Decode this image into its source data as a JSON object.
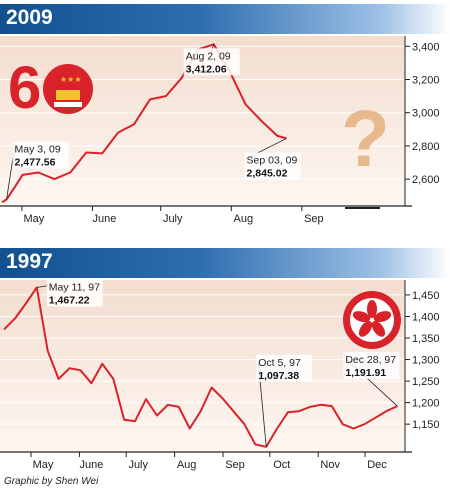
{
  "chart_data": [
    {
      "type": "line",
      "title": "2009",
      "x_tick_labels": [
        "May",
        "June",
        "July",
        "Aug",
        "Sep"
      ],
      "y_ticks": [
        2600,
        2800,
        3000,
        3200,
        3400
      ],
      "y_tick_labels": [
        "2,600",
        "2,800",
        "3,000",
        "3,200",
        "3,400"
      ],
      "ylim": [
        2450,
        3450
      ],
      "xlim": [
        "2009-05-01",
        "2009-09-30"
      ],
      "series": [
        {
          "color": "#d8232a",
          "points": [
            [
              "2009-05-01",
              2460
            ],
            [
              "2009-05-03",
              2477.56
            ],
            [
              "2009-05-07",
              2560
            ],
            [
              "2009-05-10",
              2625
            ],
            [
              "2009-05-17",
              2640
            ],
            [
              "2009-05-24",
              2600
            ],
            [
              "2009-05-31",
              2640
            ],
            [
              "2009-06-07",
              2760
            ],
            [
              "2009-06-14",
              2755
            ],
            [
              "2009-06-21",
              2880
            ],
            [
              "2009-06-28",
              2930
            ],
            [
              "2009-07-05",
              3080
            ],
            [
              "2009-07-12",
              3100
            ],
            [
              "2009-07-19",
              3210
            ],
            [
              "2009-07-26",
              3380
            ],
            [
              "2009-08-02",
              3412.06
            ],
            [
              "2009-08-09",
              3250
            ],
            [
              "2009-08-16",
              3050
            ],
            [
              "2009-08-23",
              2950
            ],
            [
              "2009-08-30",
              2860
            ],
            [
              "2009-09-03",
              2845.02
            ]
          ]
        }
      ],
      "annotations": [
        {
          "date_label": "May 3, 09",
          "value_label": "2,477.56",
          "x": "2009-05-03",
          "y": 2477.56
        },
        {
          "date_label": "Aug 2, 09",
          "value_label": "3,412.06",
          "x": "2009-08-02",
          "y": 3412.06
        },
        {
          "date_label": "Sep 03, 09",
          "value_label": "2,845.02",
          "x": "2009-09-03",
          "y": 2845.02
        }
      ],
      "decorations": {
        "logo": "60th-anniversary-logo",
        "glyph": "?"
      }
    },
    {
      "type": "line",
      "title": "1997",
      "x_tick_labels": [
        "May",
        "June",
        "July",
        "Aug",
        "Sep",
        "Oct",
        "Nov",
        "Dec"
      ],
      "y_ticks": [
        1150,
        1200,
        1250,
        1300,
        1350,
        1400,
        1450
      ],
      "y_tick_labels": [
        "1,150",
        "1,200",
        "1,250",
        "1,300",
        "1,350",
        "1,400",
        "1,450"
      ],
      "ylim": [
        1090,
        1480
      ],
      "xlim": [
        "1997-04-20",
        "1997-12-31"
      ],
      "series": [
        {
          "color": "#d8232a",
          "points": [
            [
              "1997-04-20",
              1370
            ],
            [
              "1997-04-27",
              1395
            ],
            [
              "1997-05-04",
              1430
            ],
            [
              "1997-05-11",
              1467.22
            ],
            [
              "1997-05-18",
              1320
            ],
            [
              "1997-05-25",
              1255
            ],
            [
              "1997-06-01",
              1280
            ],
            [
              "1997-06-08",
              1275
            ],
            [
              "1997-06-15",
              1245
            ],
            [
              "1997-06-22",
              1290
            ],
            [
              "1997-06-29",
              1255
            ],
            [
              "1997-07-06",
              1160
            ],
            [
              "1997-07-13",
              1157
            ],
            [
              "1997-07-20",
              1208
            ],
            [
              "1997-07-27",
              1170
            ],
            [
              "1997-08-03",
              1195
            ],
            [
              "1997-08-10",
              1190
            ],
            [
              "1997-08-17",
              1140
            ],
            [
              "1997-08-24",
              1180
            ],
            [
              "1997-08-31",
              1235
            ],
            [
              "1997-09-07",
              1210
            ],
            [
              "1997-09-14",
              1180
            ],
            [
              "1997-09-21",
              1150
            ],
            [
              "1997-09-28",
              1103
            ],
            [
              "1997-10-05",
              1097.38
            ],
            [
              "1997-10-12",
              1140
            ],
            [
              "1997-10-19",
              1178
            ],
            [
              "1997-10-26",
              1180
            ],
            [
              "1997-11-02",
              1190
            ],
            [
              "1997-11-09",
              1195
            ],
            [
              "1997-11-16",
              1192
            ],
            [
              "1997-11-23",
              1150
            ],
            [
              "1997-11-30",
              1140
            ],
            [
              "1997-12-07",
              1150
            ],
            [
              "1997-12-14",
              1165
            ],
            [
              "1997-12-21",
              1180
            ],
            [
              "1997-12-28",
              1191.91
            ]
          ]
        }
      ],
      "annotations": [
        {
          "date_label": "May 11, 97",
          "value_label": "1,467.22",
          "x": "1997-05-11",
          "y": 1467.22
        },
        {
          "date_label": "Oct 5, 97",
          "value_label": "1,097.38",
          "x": "1997-10-05",
          "y": 1097.38
        },
        {
          "date_label": "Dec 28, 97",
          "value_label": "1,191.91",
          "x": "1997-12-28",
          "y": 1191.91
        }
      ],
      "decorations": {
        "logo": "hong-kong-bauhinia-emblem"
      }
    }
  ],
  "credit": "Graphic by Shen Wei"
}
